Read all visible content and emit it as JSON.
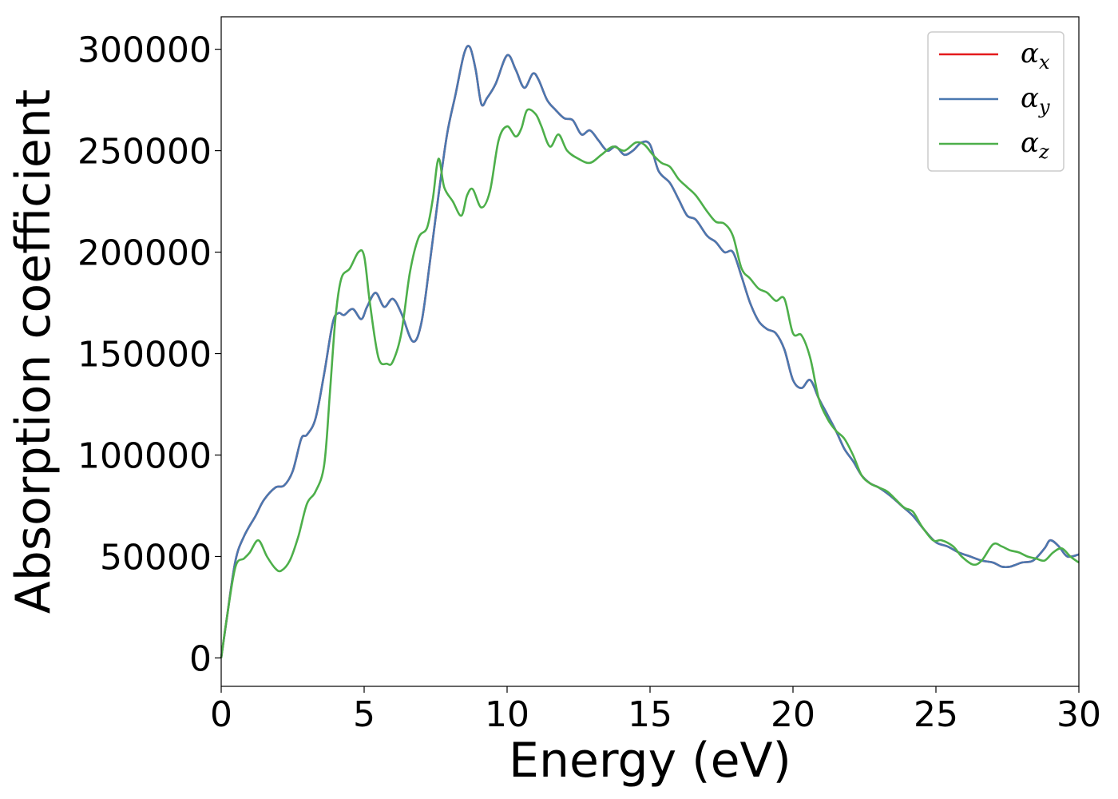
{
  "chart_data": {
    "type": "line",
    "title": "",
    "xlabel": "Energy (eV)",
    "ylabel": "Absorption coefficient",
    "xlim": [
      0,
      30
    ],
    "ylim": [
      -14000,
      316000
    ],
    "xticks": [
      0,
      5,
      10,
      15,
      20,
      25,
      30
    ],
    "xtick_labels": [
      "0",
      "5",
      "10",
      "15",
      "20",
      "25",
      "30"
    ],
    "yticks": [
      0,
      50000,
      100000,
      150000,
      200000,
      250000,
      300000
    ],
    "ytick_labels": [
      "0",
      "50000",
      "100000",
      "150000",
      "200000",
      "250000",
      "300000"
    ],
    "grid": false,
    "legend_position": "top-right",
    "series": [
      {
        "name": "α",
        "subscript": "x",
        "color": "#e41a1c",
        "x": [
          0,
          0.2,
          0.5,
          0.8,
          1.2,
          1.5,
          1.9,
          2.2,
          2.5,
          2.8,
          3.0,
          3.3,
          3.6,
          3.9,
          4.1,
          4.3,
          4.6,
          4.9,
          5.1,
          5.4,
          5.7,
          6.0,
          6.3,
          6.7,
          7.0,
          7.3,
          7.6,
          7.9,
          8.2,
          8.5,
          8.7,
          8.9,
          9.1,
          9.3,
          9.6,
          10.0,
          10.3,
          10.6,
          10.9,
          11.1,
          11.4,
          11.7,
          12.0,
          12.3,
          12.6,
          12.9,
          13.2,
          13.5,
          13.8,
          14.1,
          14.4,
          14.7,
          15.0,
          15.3,
          15.7,
          16.0,
          16.3,
          16.6,
          17.0,
          17.3,
          17.6,
          17.9,
          18.2,
          18.5,
          18.8,
          19.1,
          19.4,
          19.7,
          20.0,
          20.3,
          20.6,
          20.9,
          21.2,
          21.5,
          21.8,
          22.1,
          22.4,
          22.7,
          23.0,
          23.4,
          23.8,
          24.2,
          24.6,
          25.0,
          25.4,
          25.8,
          26.2,
          26.6,
          27.0,
          27.3,
          27.6,
          28.0,
          28.4,
          28.8,
          29.0,
          29.3,
          29.6,
          30.0
        ],
        "y": [
          0,
          20000,
          48000,
          60000,
          70000,
          78000,
          84000,
          85000,
          92000,
          108000,
          110000,
          118000,
          140000,
          165000,
          170000,
          169000,
          172000,
          167000,
          173000,
          180000,
          173000,
          177000,
          170000,
          156000,
          165000,
          195000,
          228000,
          258000,
          278000,
          298000,
          301000,
          290000,
          273000,
          276000,
          283000,
          297000,
          290000,
          281000,
          288000,
          285000,
          275000,
          270000,
          266000,
          265000,
          258000,
          260000,
          255000,
          250000,
          252000,
          248000,
          250000,
          254000,
          253000,
          240000,
          234000,
          226000,
          218000,
          216000,
          208000,
          205000,
          200000,
          200000,
          188000,
          175000,
          166000,
          162000,
          160000,
          152000,
          137000,
          133000,
          137000,
          128000,
          120000,
          112000,
          103000,
          97000,
          90000,
          86000,
          84000,
          80000,
          75000,
          70000,
          63000,
          57000,
          55000,
          52000,
          50000,
          48000,
          47000,
          45000,
          45000,
          47000,
          48000,
          54000,
          58000,
          55000,
          50000,
          51000
        ]
      },
      {
        "name": "α",
        "subscript": "y",
        "color": "#4a78b0",
        "x": [
          0,
          0.2,
          0.5,
          0.8,
          1.2,
          1.5,
          1.9,
          2.2,
          2.5,
          2.8,
          3.0,
          3.3,
          3.6,
          3.9,
          4.1,
          4.3,
          4.6,
          4.9,
          5.1,
          5.4,
          5.7,
          6.0,
          6.3,
          6.7,
          7.0,
          7.3,
          7.6,
          7.9,
          8.2,
          8.5,
          8.7,
          8.9,
          9.1,
          9.3,
          9.6,
          10.0,
          10.3,
          10.6,
          10.9,
          11.1,
          11.4,
          11.7,
          12.0,
          12.3,
          12.6,
          12.9,
          13.2,
          13.5,
          13.8,
          14.1,
          14.4,
          14.7,
          15.0,
          15.3,
          15.7,
          16.0,
          16.3,
          16.6,
          17.0,
          17.3,
          17.6,
          17.9,
          18.2,
          18.5,
          18.8,
          19.1,
          19.4,
          19.7,
          20.0,
          20.3,
          20.6,
          20.9,
          21.2,
          21.5,
          21.8,
          22.1,
          22.4,
          22.7,
          23.0,
          23.4,
          23.8,
          24.2,
          24.6,
          25.0,
          25.4,
          25.8,
          26.2,
          26.6,
          27.0,
          27.3,
          27.6,
          28.0,
          28.4,
          28.8,
          29.0,
          29.3,
          29.6,
          30.0
        ],
        "y": [
          0,
          20000,
          48000,
          60000,
          70000,
          78000,
          84000,
          85000,
          92000,
          108000,
          110000,
          118000,
          140000,
          165000,
          170000,
          169000,
          172000,
          167000,
          173000,
          180000,
          173000,
          177000,
          170000,
          156000,
          165000,
          195000,
          228000,
          258000,
          278000,
          298000,
          301000,
          290000,
          273000,
          276000,
          283000,
          297000,
          290000,
          281000,
          288000,
          285000,
          275000,
          270000,
          266000,
          265000,
          258000,
          260000,
          255000,
          250000,
          252000,
          248000,
          250000,
          254000,
          253000,
          240000,
          234000,
          226000,
          218000,
          216000,
          208000,
          205000,
          200000,
          200000,
          188000,
          175000,
          166000,
          162000,
          160000,
          152000,
          137000,
          133000,
          137000,
          128000,
          120000,
          112000,
          103000,
          97000,
          90000,
          86000,
          84000,
          80000,
          75000,
          70000,
          63000,
          57000,
          55000,
          52000,
          50000,
          48000,
          47000,
          45000,
          45000,
          47000,
          48000,
          54000,
          58000,
          55000,
          50000,
          51000
        ]
      },
      {
        "name": "α",
        "subscript": "z",
        "color": "#4daf4a",
        "x": [
          0,
          0.2,
          0.5,
          0.8,
          1.0,
          1.3,
          1.6,
          1.9,
          2.1,
          2.4,
          2.7,
          3.0,
          3.3,
          3.6,
          3.8,
          4.0,
          4.2,
          4.5,
          4.8,
          5.0,
          5.2,
          5.5,
          5.8,
          6.0,
          6.3,
          6.6,
          6.9,
          7.2,
          7.4,
          7.6,
          7.8,
          8.1,
          8.4,
          8.6,
          8.8,
          9.1,
          9.4,
          9.7,
          10.0,
          10.3,
          10.5,
          10.7,
          11.0,
          11.2,
          11.5,
          11.8,
          12.1,
          12.5,
          12.9,
          13.3,
          13.7,
          14.1,
          14.5,
          14.8,
          15.1,
          15.4,
          15.7,
          16.0,
          16.3,
          16.6,
          17.0,
          17.3,
          17.6,
          17.9,
          18.2,
          18.5,
          18.8,
          19.1,
          19.4,
          19.7,
          20.0,
          20.3,
          20.6,
          20.9,
          21.2,
          21.5,
          21.8,
          22.1,
          22.4,
          22.7,
          23.0,
          23.3,
          23.6,
          23.9,
          24.2,
          24.5,
          24.9,
          25.2,
          25.6,
          25.9,
          26.3,
          26.6,
          27.0,
          27.3,
          27.6,
          27.9,
          28.2,
          28.5,
          28.8,
          29.1,
          29.4,
          29.7,
          30.0
        ],
        "y": [
          0,
          20000,
          45000,
          49000,
          52000,
          58000,
          50000,
          44000,
          43000,
          48000,
          60000,
          76000,
          82000,
          95000,
          130000,
          168000,
          187000,
          192000,
          200000,
          198000,
          175000,
          148000,
          145000,
          146000,
          160000,
          190000,
          207000,
          212000,
          226000,
          246000,
          232000,
          225000,
          218000,
          228000,
          231000,
          222000,
          230000,
          255000,
          262000,
          257000,
          261000,
          270000,
          268000,
          262000,
          252000,
          258000,
          250000,
          246000,
          244000,
          248000,
          252000,
          250000,
          254000,
          253000,
          248000,
          244000,
          242000,
          236000,
          232000,
          228000,
          220000,
          215000,
          214000,
          208000,
          192000,
          187000,
          182000,
          180000,
          176000,
          177000,
          160000,
          159000,
          148000,
          128000,
          118000,
          112000,
          108000,
          100000,
          90000,
          86000,
          84000,
          82000,
          78000,
          74000,
          72000,
          65000,
          58000,
          58000,
          55000,
          50000,
          46000,
          48000,
          56000,
          55000,
          53000,
          52000,
          50000,
          49000,
          48000,
          52000,
          54000,
          50000,
          47000
        ]
      }
    ]
  }
}
